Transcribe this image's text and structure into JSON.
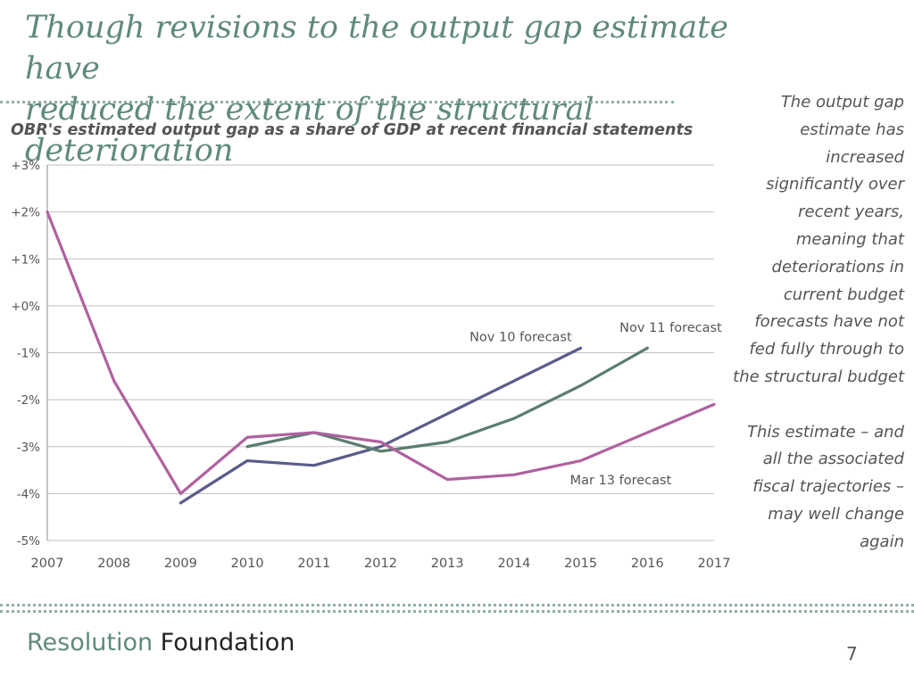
{
  "slide": {
    "title_line1": "Though revisions to the output gap estimate have",
    "title_line2": "reduced the extent of the structural deterioration",
    "side_note": [
      "The output gap estimate has increased significantly over recent years, meaning that deteriorations in current budget forecasts have not fed fully through to the structural budget",
      "This estimate – and all the associated fiscal trajectories – may well change again"
    ],
    "brand_part1": "Resolution",
    "brand_part2": "Foundation",
    "page_number": "7"
  },
  "colors": {
    "title": "#5f8a7a",
    "nov10": "#5a5b8c",
    "nov11": "#5a7e6e",
    "mar13": "#b060a0",
    "grid": "#bfbfbf",
    "text": "#555555"
  },
  "chart_data": {
    "type": "line",
    "title": "OBR's estimated output gap as a share of GDP at recent financial statements",
    "xlabel": "",
    "ylabel": "",
    "x": [
      2007,
      2008,
      2009,
      2010,
      2011,
      2012,
      2013,
      2014,
      2015,
      2016,
      2017
    ],
    "x_tick_labels": [
      "2007",
      "2008",
      "2009",
      "2010",
      "2011",
      "2012",
      "2013",
      "2014",
      "2015",
      "2016",
      "2017"
    ],
    "ylim": [
      -5,
      3
    ],
    "y_ticks": [
      3,
      2,
      1,
      0,
      -1,
      -2,
      -3,
      -4,
      -5
    ],
    "y_tick_labels": [
      "+3%",
      "+2%",
      "+1%",
      "+0%",
      "-1%",
      "-2%",
      "-3%",
      "-4%",
      "-5%"
    ],
    "grid": true,
    "series": [
      {
        "name": "Nov 10 forecast",
        "color_key": "nov10",
        "points": [
          [
            2009,
            -4.2
          ],
          [
            2010,
            -3.3
          ],
          [
            2011,
            -3.4
          ],
          [
            2012,
            -3.0
          ],
          [
            2013,
            -2.3
          ],
          [
            2014,
            -1.6
          ],
          [
            2015,
            -0.9
          ]
        ],
        "label_anchor": [
          2014.1,
          -0.75
        ]
      },
      {
        "name": "Nov 11 forecast",
        "color_key": "nov11",
        "points": [
          [
            2010,
            -3.0
          ],
          [
            2011,
            -2.7
          ],
          [
            2012,
            -3.1
          ],
          [
            2013,
            -2.9
          ],
          [
            2014,
            -2.4
          ],
          [
            2015,
            -1.7
          ],
          [
            2016,
            -0.9
          ]
        ],
        "label_anchor": [
          2016.35,
          -0.55
        ]
      },
      {
        "name": "Mar 13 forecast",
        "color_key": "mar13",
        "points": [
          [
            2007,
            2.0
          ],
          [
            2008,
            -1.6
          ],
          [
            2009,
            -4.0
          ],
          [
            2010,
            -2.8
          ],
          [
            2011,
            -2.7
          ],
          [
            2012,
            -2.9
          ],
          [
            2013,
            -3.7
          ],
          [
            2014,
            -3.6
          ],
          [
            2015,
            -3.3
          ],
          [
            2016,
            -2.7
          ],
          [
            2017,
            -2.1
          ]
        ],
        "label_anchor": [
          2015.6,
          -3.8
        ]
      }
    ]
  }
}
